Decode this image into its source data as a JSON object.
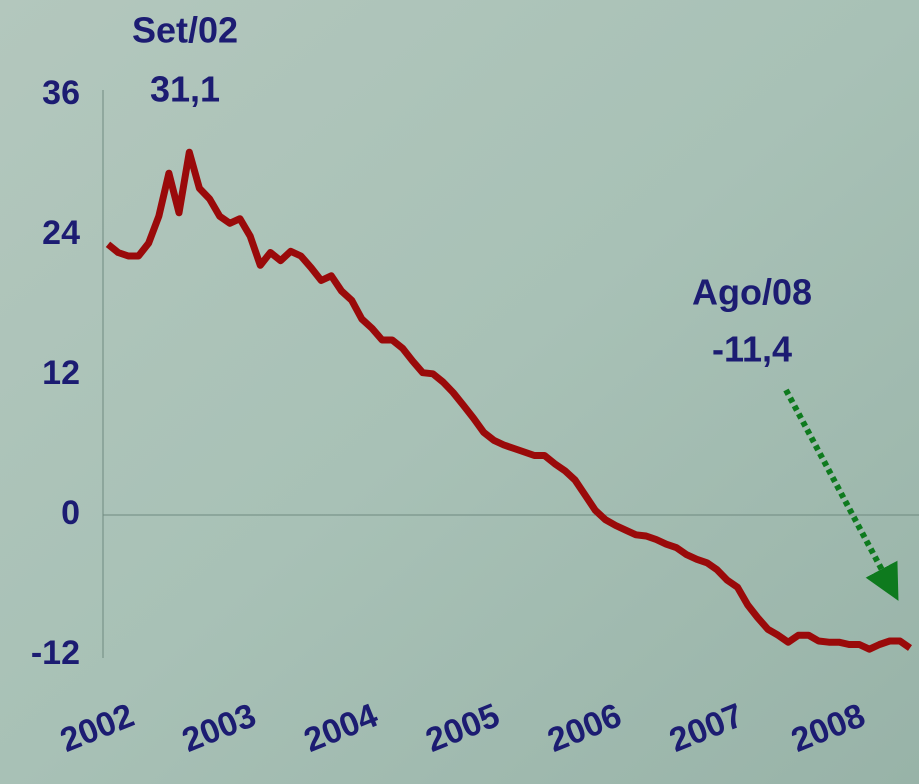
{
  "chart_data": {
    "type": "line",
    "annotations": [
      "Set/02",
      "31,1",
      "Ago/08",
      "-11,4"
    ],
    "x": [
      2002,
      2002.083,
      2002.167,
      2002.25,
      2002.333,
      2002.417,
      2002.5,
      2002.583,
      2002.667,
      2002.75,
      2002.833,
      2002.917,
      2003,
      2003.083,
      2003.167,
      2003.25,
      2003.333,
      2003.417,
      2003.5,
      2003.583,
      2003.667,
      2003.75,
      2003.833,
      2003.917,
      2004,
      2004.083,
      2004.167,
      2004.25,
      2004.333,
      2004.417,
      2004.5,
      2004.583,
      2004.667,
      2004.75,
      2004.833,
      2004.917,
      2005,
      2005.083,
      2005.167,
      2005.25,
      2005.333,
      2005.417,
      2005.5,
      2005.583,
      2005.667,
      2005.75,
      2005.833,
      2005.917,
      2006,
      2006.083,
      2006.167,
      2006.25,
      2006.333,
      2006.417,
      2006.5,
      2006.583,
      2006.667,
      2006.75,
      2006.833,
      2006.917,
      2007,
      2007.083,
      2007.167,
      2007.25,
      2007.333,
      2007.417,
      2007.5,
      2007.583,
      2007.667,
      2007.75,
      2007.833,
      2007.917,
      2008,
      2008.083,
      2008.167,
      2008.25,
      2008.333,
      2008.417,
      2008.5,
      2008.583
    ],
    "series": [
      {
        "color": "#9a0a0a",
        "values": [
          23.2,
          22.5,
          22.2,
          22.2,
          23.3,
          25.6,
          29.3,
          25.9,
          31.1,
          28,
          27.1,
          25.6,
          25,
          25.4,
          23.9,
          21.4,
          22.5,
          21.8,
          22.6,
          22.2,
          21.2,
          20.1,
          20.5,
          19.2,
          18.4,
          16.8,
          16,
          15,
          15,
          14.3,
          13.2,
          12.2,
          12.1,
          11.4,
          10.5,
          9.4,
          8.3,
          7.1,
          6.4,
          6,
          5.7,
          5.4,
          5.1,
          5.1,
          4.4,
          3.8,
          3,
          1.7,
          0.4,
          -0.4,
          -0.9,
          -1.3,
          -1.7,
          -1.8,
          -2.1,
          -2.5,
          -2.8,
          -3.4,
          -3.8,
          -4.1,
          -4.7,
          -5.6,
          -6.2,
          -7.7,
          -8.8,
          -9.8,
          -10.3,
          -10.9,
          -10.3,
          -10.3,
          -10.8,
          -10.9,
          -10.9,
          -11.1,
          -11.1,
          -11.5,
          -11.1,
          -10.8,
          -10.8,
          -11.4
        ]
      }
    ],
    "xlim": [
      2002,
      2008.583
    ],
    "xticks": [
      2002,
      2003,
      2004,
      2005,
      2006,
      2007,
      2008
    ],
    "ylim": [
      -12,
      36
    ],
    "yticks": [
      -12,
      0,
      12,
      24,
      36
    ]
  }
}
